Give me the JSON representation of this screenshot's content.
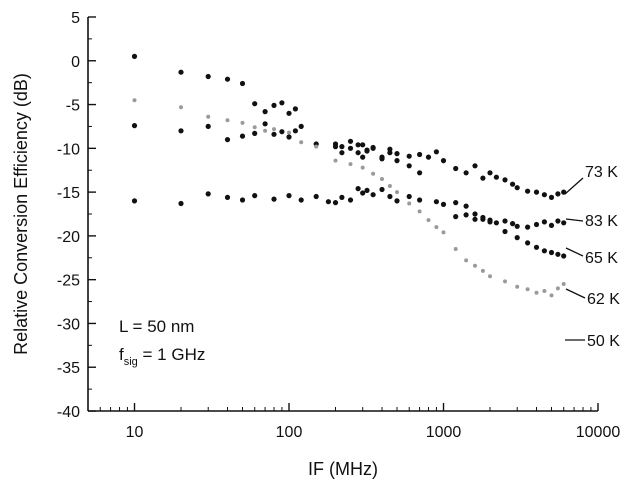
{
  "chart_data": {
    "type": "scatter",
    "xlabel": "IF (MHz)",
    "ylabel": "Relative Conversion Efficiency (dB)",
    "xscale": "log",
    "xlim": [
      5,
      10000
    ],
    "ylim": [
      -40,
      5
    ],
    "xticks": [
      10,
      100,
      1000,
      10000
    ],
    "xtick_labels": [
      "10",
      "100",
      "1000",
      "10000"
    ],
    "yticks": [
      5,
      0,
      -5,
      -10,
      -15,
      -20,
      -25,
      -30,
      -35,
      -40
    ],
    "ytick_labels": [
      "5",
      "0",
      "-5",
      "-10",
      "-15",
      "-20",
      "-25",
      "-30",
      "-35",
      "-40"
    ],
    "grid": false,
    "annotations": {
      "line1": "L = 50 nm",
      "line2_main": "f",
      "line2_sub": "sig",
      "line2_rest": " = 1 GHz"
    },
    "series": [
      {
        "name": "73 K",
        "color": "#111111",
        "x": [
          10,
          20,
          30,
          40,
          50,
          60,
          70,
          80,
          90,
          100,
          110,
          200,
          220,
          250,
          280,
          300,
          320,
          350,
          400,
          450,
          500,
          600,
          700,
          800,
          900,
          1000,
          1200,
          1400,
          1600,
          1800,
          2000,
          2200,
          2500,
          2800,
          3000,
          3500,
          4000,
          4500,
          5000,
          5500,
          6000
        ],
        "y": [
          0.5,
          -1.3,
          -1.8,
          -2.1,
          -2.6,
          -4.9,
          -5.8,
          -5.1,
          -4.8,
          -6.0,
          -5.5,
          -9.5,
          -9.8,
          -9.2,
          -10.5,
          -9.6,
          -10.2,
          -10.0,
          -11.2,
          -10.1,
          -10.6,
          -10.9,
          -10.7,
          -11.0,
          -10.4,
          -11.4,
          -12.3,
          -12.8,
          -12.0,
          -13.4,
          -12.8,
          -13.3,
          -13.6,
          -14.1,
          -14.5,
          -14.9,
          -15.0,
          -15.3,
          -15.6,
          -15.2,
          -15.0
        ]
      },
      {
        "name": "83 K",
        "color": "#111111",
        "x": [
          10,
          20,
          30,
          40,
          50,
          60,
          70,
          80,
          90,
          100,
          110,
          120,
          150,
          200,
          220,
          250,
          280,
          300,
          320,
          350,
          400,
          450,
          500,
          600,
          700,
          1200,
          1400,
          1600,
          1800,
          2000,
          2200,
          2500,
          2800,
          3000,
          3500,
          4000,
          4500,
          5000,
          5500,
          6000
        ],
        "y": [
          -7.4,
          -8.0,
          -7.5,
          -9.0,
          -8.6,
          -8.3,
          -7.2,
          -8.4,
          -8.1,
          -8.7,
          -8.0,
          -7.5,
          -9.5,
          -9.8,
          -10.5,
          -10.0,
          -9.6,
          -11.0,
          -10.3,
          -9.9,
          -11.0,
          -10.5,
          -11.4,
          -12.0,
          -12.8,
          -17.8,
          -17.6,
          -18.1,
          -17.9,
          -18.2,
          -18.5,
          -18.3,
          -18.6,
          -18.9,
          -19.0,
          -18.7,
          -18.4,
          -18.8,
          -18.3,
          -18.5
        ]
      },
      {
        "name": "65 K",
        "color": "#111111",
        "x": [
          10,
          20,
          30,
          40,
          50,
          60,
          80,
          100,
          120,
          150,
          180,
          200,
          220,
          250,
          280,
          300,
          320,
          350,
          400,
          450,
          500,
          600,
          700,
          900,
          1000,
          1200,
          1400,
          1600,
          1800,
          2000,
          2500,
          3000,
          3500,
          4000,
          4500,
          5000,
          5500,
          6000
        ],
        "y": [
          -16.0,
          -16.3,
          -15.2,
          -15.6,
          -15.9,
          -15.4,
          -15.8,
          -15.4,
          -15.9,
          -15.5,
          -16.1,
          -16.2,
          -15.6,
          -15.9,
          -14.6,
          -15.1,
          -14.8,
          -15.3,
          -14.7,
          -15.5,
          -16.0,
          -15.5,
          -15.9,
          -16.1,
          -16.4,
          -16.2,
          -16.6,
          -17.5,
          -18.1,
          -18.4,
          -19.5,
          -20.2,
          -20.8,
          -21.3,
          -21.7,
          -21.9,
          -22.1,
          -22.3
        ]
      },
      {
        "name": "62 K",
        "color": "#9a9a9a",
        "x": [
          10,
          20,
          30,
          40,
          50,
          60,
          70,
          80,
          100,
          120,
          150,
          200,
          250,
          300,
          350,
          400,
          450,
          500,
          600,
          700,
          800,
          900,
          1000,
          1200,
          1400,
          1600,
          1800,
          2000,
          2500,
          3000,
          3500,
          4000,
          4500,
          5000,
          5500,
          6000
        ],
        "y": [
          -4.5,
          -5.3,
          -6.4,
          -6.8,
          -7.1,
          -7.6,
          -8.0,
          -7.8,
          -8.2,
          -9.3,
          -9.8,
          -11.4,
          -11.8,
          -12.2,
          -12.9,
          -13.5,
          -14.3,
          -15.0,
          -16.3,
          -17.2,
          -18.2,
          -19.0,
          -19.6,
          -21.5,
          -22.8,
          -23.4,
          -24.0,
          -24.6,
          -25.2,
          -25.8,
          -26.1,
          -26.5,
          -26.3,
          -26.8,
          -26.0,
          -25.5
        ]
      },
      {
        "name": "50 K",
        "color": "#111111",
        "x": [],
        "y": []
      }
    ],
    "series_labels": {
      "s73": "73 K",
      "s83": "83 K",
      "s65": "65 K",
      "s62": "62 K",
      "s50": "50 K"
    }
  }
}
